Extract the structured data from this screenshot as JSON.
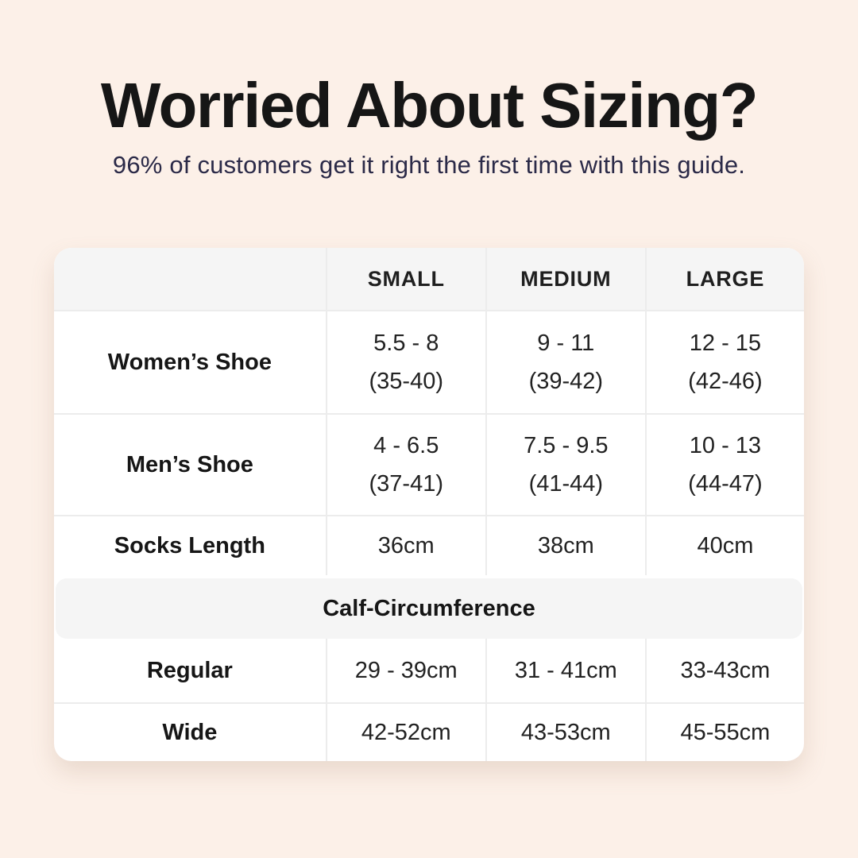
{
  "colors": {
    "background": "#fcf0e8",
    "title_text": "#161616",
    "subtitle_text": "#2b2a48",
    "card_background": "#ffffff",
    "band_background": "#f5f5f5",
    "divider": "#ececec",
    "table_text": "#222222"
  },
  "chart_data": {
    "type": "table",
    "title": "Worried About Sizing?",
    "subtitle": "96% of customers get it right the first time with this guide.",
    "column_headers": [
      "",
      "SMALL",
      "MEDIUM",
      "LARGE"
    ],
    "rows": [
      {
        "label": "Women’s Shoe",
        "cells": [
          {
            "line1": "5.5 - 8",
            "line2": "(35-40)"
          },
          {
            "line1": "9 - 11",
            "line2": "(39-42)"
          },
          {
            "line1": "12 - 15",
            "line2": "(42-46)"
          }
        ]
      },
      {
        "label": "Men’s Shoe",
        "cells": [
          {
            "line1": "4 - 6.5",
            "line2": "(37-41)"
          },
          {
            "line1": "7.5 - 9.5",
            "line2": "(41-44)"
          },
          {
            "line1": "10 - 13",
            "line2": "(44-47)"
          }
        ]
      },
      {
        "label": "Socks Length",
        "cells": [
          {
            "line1": "36cm"
          },
          {
            "line1": "38cm"
          },
          {
            "line1": "40cm"
          }
        ]
      }
    ],
    "section_header": "Calf-Circumference",
    "section_rows": [
      {
        "label": "Regular",
        "cells": [
          {
            "line1": "29 - 39cm"
          },
          {
            "line1": "31 - 41cm"
          },
          {
            "line1": "33-43cm"
          }
        ]
      },
      {
        "label": "Wide",
        "cells": [
          {
            "line1": "42-52cm"
          },
          {
            "line1": "43-53cm"
          },
          {
            "line1": "45-55cm"
          }
        ]
      }
    ]
  }
}
